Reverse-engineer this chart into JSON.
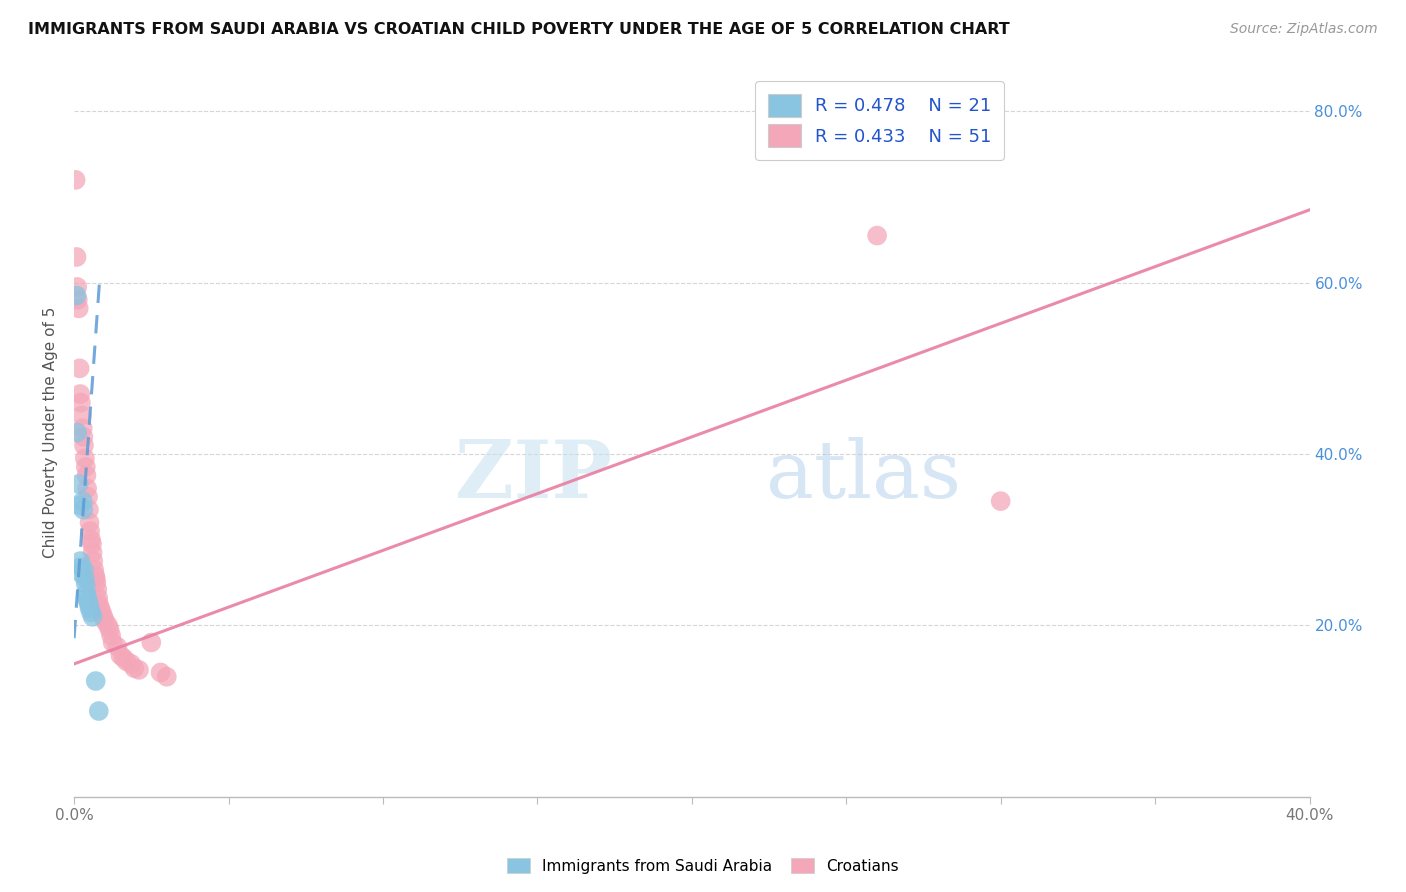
{
  "title": "IMMIGRANTS FROM SAUDI ARABIA VS CROATIAN CHILD POVERTY UNDER THE AGE OF 5 CORRELATION CHART",
  "source": "Source: ZipAtlas.com",
  "ylabel": "Child Poverty Under the Age of 5",
  "xmin": 0.0,
  "xmax": 0.4,
  "ymin": 0.0,
  "ymax": 0.85,
  "legend_r1": "R = 0.478",
  "legend_n1": "N = 21",
  "legend_r2": "R = 0.433",
  "legend_n2": "N = 51",
  "watermark_zip": "ZIP",
  "watermark_atlas": "atlas",
  "blue_color": "#89c4e1",
  "pink_color": "#f4a7b9",
  "blue_line_color": "#5b9bd5",
  "pink_line_color": "#e87ea1",
  "blue_scatter": [
    [
      0.0008,
      0.585
    ],
    [
      0.001,
      0.425
    ],
    [
      0.0015,
      0.365
    ],
    [
      0.0018,
      0.34
    ],
    [
      0.002,
      0.275
    ],
    [
      0.0022,
      0.268
    ],
    [
      0.0025,
      0.26
    ],
    [
      0.0028,
      0.345
    ],
    [
      0.003,
      0.335
    ],
    [
      0.0032,
      0.265
    ],
    [
      0.0035,
      0.255
    ],
    [
      0.0038,
      0.248
    ],
    [
      0.004,
      0.238
    ],
    [
      0.0042,
      0.232
    ],
    [
      0.0045,
      0.228
    ],
    [
      0.0048,
      0.225
    ],
    [
      0.005,
      0.22
    ],
    [
      0.0055,
      0.215
    ],
    [
      0.006,
      0.21
    ],
    [
      0.007,
      0.135
    ],
    [
      0.008,
      0.1
    ]
  ],
  "pink_scatter": [
    [
      0.0005,
      0.72
    ],
    [
      0.0008,
      0.63
    ],
    [
      0.001,
      0.595
    ],
    [
      0.0012,
      0.58
    ],
    [
      0.0015,
      0.57
    ],
    [
      0.0018,
      0.5
    ],
    [
      0.002,
      0.47
    ],
    [
      0.0022,
      0.46
    ],
    [
      0.0025,
      0.445
    ],
    [
      0.0028,
      0.43
    ],
    [
      0.003,
      0.42
    ],
    [
      0.0032,
      0.41
    ],
    [
      0.0035,
      0.395
    ],
    [
      0.0038,
      0.385
    ],
    [
      0.004,
      0.375
    ],
    [
      0.0042,
      0.36
    ],
    [
      0.0045,
      0.35
    ],
    [
      0.0048,
      0.335
    ],
    [
      0.005,
      0.32
    ],
    [
      0.0052,
      0.31
    ],
    [
      0.0055,
      0.3
    ],
    [
      0.0058,
      0.295
    ],
    [
      0.006,
      0.285
    ],
    [
      0.0062,
      0.275
    ],
    [
      0.0065,
      0.265
    ],
    [
      0.0068,
      0.258
    ],
    [
      0.007,
      0.255
    ],
    [
      0.0072,
      0.25
    ],
    [
      0.0075,
      0.242
    ],
    [
      0.0078,
      0.232
    ],
    [
      0.008,
      0.225
    ],
    [
      0.0085,
      0.22
    ],
    [
      0.009,
      0.215
    ],
    [
      0.0095,
      0.21
    ],
    [
      0.01,
      0.205
    ],
    [
      0.011,
      0.2
    ],
    [
      0.0115,
      0.195
    ],
    [
      0.012,
      0.188
    ],
    [
      0.0125,
      0.18
    ],
    [
      0.014,
      0.175
    ],
    [
      0.015,
      0.165
    ],
    [
      0.016,
      0.162
    ],
    [
      0.017,
      0.158
    ],
    [
      0.0185,
      0.155
    ],
    [
      0.0195,
      0.15
    ],
    [
      0.021,
      0.148
    ],
    [
      0.025,
      0.18
    ],
    [
      0.028,
      0.145
    ],
    [
      0.03,
      0.14
    ],
    [
      0.26,
      0.655
    ],
    [
      0.3,
      0.345
    ]
  ],
  "blue_trendline_x": [
    0.0,
    0.0082
  ],
  "blue_trendline_y": [
    0.185,
    0.6
  ],
  "pink_trendline_x": [
    0.0,
    0.4
  ],
  "pink_trendline_y": [
    0.155,
    0.685
  ]
}
